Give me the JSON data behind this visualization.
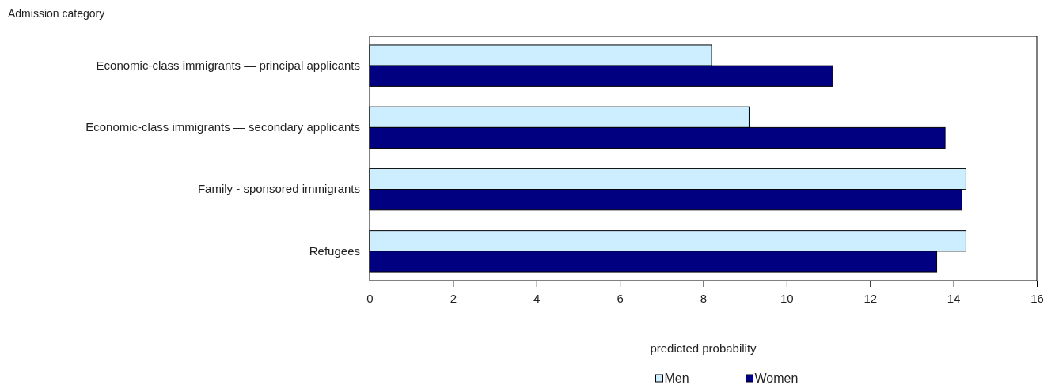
{
  "chart_data": {
    "type": "bar",
    "orientation": "horizontal",
    "title": "Admission category",
    "xlabel": "predicted probability",
    "categories": [
      "Economic-class immigrants — principal applicants",
      "Economic-class immigrants — secondary applicants",
      "Family - sponsored immigrants",
      "Refugees"
    ],
    "series": [
      {
        "name": "Men",
        "color": "#cceeff",
        "values": [
          8.2,
          9.1,
          14.3,
          14.3
        ]
      },
      {
        "name": "Women",
        "color": "#000080",
        "values": [
          11.1,
          13.8,
          14.2,
          13.6
        ]
      }
    ],
    "xlim": [
      0,
      16
    ],
    "xticks": [
      0,
      2,
      4,
      6,
      8,
      10,
      12,
      14,
      16
    ],
    "grid": false,
    "legend": "bottom"
  }
}
